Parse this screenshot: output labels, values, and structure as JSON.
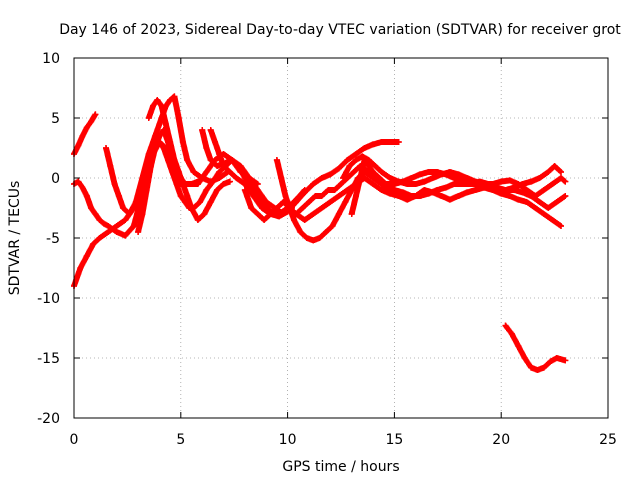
{
  "chart_data": {
    "type": "scatter",
    "title": "Day 146 of 2023, Sidereal Day-to-day VTEC variation (SDTVAR) for receiver grot",
    "xlabel": "GPS time / hours",
    "ylabel": "SDTVAR / TECUs",
    "xlim": [
      0,
      25
    ],
    "ylim": [
      -20,
      10
    ],
    "xticks": [
      0,
      5,
      10,
      15,
      20,
      25
    ],
    "yticks": [
      -20,
      -15,
      -10,
      -5,
      0,
      5,
      10
    ],
    "grid": true,
    "marker": "+",
    "color": "#ff0000",
    "series": [
      {
        "name": "trace-1",
        "x": [
          0.0,
          0.3,
          0.6,
          0.9,
          1.2,
          1.6,
          2.0,
          2.4,
          2.8,
          3.1,
          3.4,
          3.7,
          4.0,
          4.3,
          4.6,
          5.0,
          5.4,
          5.8,
          6.2,
          6.6,
          7.0,
          7.4,
          7.8,
          8.2,
          8.6
        ],
        "y": [
          -9.0,
          -7.5,
          -6.5,
          -5.5,
          -5.0,
          -4.5,
          -4.0,
          -3.5,
          -2.5,
          -1.0,
          1.0,
          2.5,
          3.0,
          2.5,
          1.0,
          -0.5,
          -0.5,
          -0.5,
          0.5,
          1.5,
          2.0,
          1.5,
          0.5,
          0.0,
          -0.5
        ]
      },
      {
        "name": "trace-2",
        "x": [
          0.0,
          0.2,
          0.4,
          0.6,
          0.8,
          1.0,
          1.2,
          1.4,
          1.6,
          2.0,
          2.4,
          2.8,
          3.1,
          3.4,
          3.7,
          4.0,
          4.2,
          4.4,
          4.6,
          4.8,
          5.0,
          5.2,
          5.4,
          5.6,
          5.9,
          6.2,
          6.5,
          6.8,
          7.1,
          7.4,
          7.7,
          8.0,
          8.4,
          8.8,
          9.2,
          9.6,
          10.0,
          10.4,
          10.8
        ],
        "y": [
          -0.5,
          -0.3,
          -0.8,
          -1.5,
          -2.5,
          -3.0,
          -3.5,
          -3.8,
          -4.0,
          -4.5,
          -4.8,
          -4.0,
          -2.0,
          0.5,
          2.0,
          3.0,
          2.5,
          1.5,
          0.5,
          -0.5,
          -1.5,
          -2.0,
          -2.5,
          -2.5,
          -2.0,
          -1.0,
          -0.3,
          0.5,
          1.0,
          1.5,
          1.0,
          0.0,
          -1.0,
          -2.0,
          -2.8,
          -3.0,
          -2.5,
          -1.8,
          -1.0
        ]
      },
      {
        "name": "trace-3",
        "x": [
          0.0,
          0.2,
          0.4,
          0.6,
          0.8,
          1.0
        ],
        "y": [
          2.0,
          2.7,
          3.5,
          4.2,
          4.7,
          5.3
        ]
      },
      {
        "name": "trace-4",
        "x": [
          1.5,
          1.7,
          1.9,
          2.1,
          2.3,
          2.6,
          2.9,
          3.2,
          3.5,
          3.8,
          4.1,
          4.3,
          4.5,
          4.7,
          4.9,
          5.1,
          5.3,
          5.6,
          6.0,
          6.4,
          6.8,
          7.2
        ],
        "y": [
          2.5,
          1.0,
          -0.5,
          -1.5,
          -2.5,
          -3.0,
          -2.0,
          0.0,
          2.0,
          3.5,
          5.0,
          6.0,
          6.5,
          6.8,
          5.0,
          3.0,
          1.5,
          0.5,
          0.0,
          -0.3,
          0.0,
          0.5
        ]
      },
      {
        "name": "trace-5",
        "x": [
          3.5,
          3.7,
          3.9,
          4.1,
          4.3,
          4.5,
          4.7,
          4.9,
          5.1,
          5.3,
          5.5,
          5.8,
          6.1,
          6.4,
          6.7,
          7.0,
          7.3
        ],
        "y": [
          5.0,
          6.0,
          6.5,
          6.0,
          4.5,
          3.0,
          1.5,
          0.5,
          -0.5,
          -1.5,
          -2.5,
          -3.5,
          -3.0,
          -2.0,
          -1.0,
          -0.5,
          -0.3
        ]
      },
      {
        "name": "trace-6",
        "x": [
          3.0,
          3.2,
          3.4,
          3.6,
          3.8,
          4.0,
          4.2,
          4.4,
          4.6,
          4.8,
          5.0,
          5.2,
          5.5,
          5.8
        ],
        "y": [
          -4.5,
          -3.0,
          -1.0,
          1.0,
          2.5,
          3.5,
          4.0,
          3.0,
          2.0,
          1.0,
          0.0,
          -0.5,
          -0.5,
          -0.3
        ]
      },
      {
        "name": "trace-7",
        "x": [
          6.0,
          6.2,
          6.4,
          6.7,
          7.0,
          7.4,
          7.8,
          8.2,
          8.6,
          9.0,
          9.4,
          9.8,
          10.2
        ],
        "y": [
          4.0,
          2.5,
          1.5,
          1.0,
          1.2,
          1.5,
          1.0,
          0.0,
          -1.0,
          -2.0,
          -2.5,
          -3.0,
          -2.5
        ]
      },
      {
        "name": "trace-8",
        "x": [
          6.4,
          6.6,
          6.8,
          7.0,
          7.3,
          7.6,
          8.0,
          8.4,
          8.8,
          9.2,
          9.6,
          10.0,
          10.4,
          10.8,
          11.2,
          11.6,
          12.0,
          12.4,
          12.8,
          13.2,
          13.6,
          14.0,
          14.4,
          14.8,
          15.2
        ],
        "y": [
          4.0,
          3.0,
          2.0,
          1.0,
          0.5,
          0.0,
          -0.5,
          -1.5,
          -2.5,
          -3.0,
          -3.2,
          -2.8,
          -2.0,
          -1.2,
          -0.5,
          0.0,
          0.3,
          0.8,
          1.5,
          2.0,
          2.5,
          2.8,
          3.0,
          3.0,
          3.0
        ]
      },
      {
        "name": "trace-9",
        "x": [
          9.5,
          9.7,
          9.9,
          10.1,
          10.3,
          10.6,
          10.9,
          11.2,
          11.5,
          11.8,
          12.1,
          12.4,
          12.7,
          13.0,
          13.3,
          13.6,
          14.0,
          14.4,
          14.8,
          15.2,
          15.6,
          16.0,
          16.4
        ],
        "y": [
          1.5,
          0.0,
          -1.5,
          -2.5,
          -3.5,
          -4.5,
          -5.0,
          -5.2,
          -5.0,
          -4.5,
          -4.0,
          -3.0,
          -2.0,
          -1.0,
          0.0,
          0.5,
          0.0,
          -0.5,
          -1.0,
          -1.3,
          -1.5,
          -1.5,
          -1.0
        ]
      },
      {
        "name": "trace-10",
        "x": [
          8.0,
          8.3,
          8.6,
          8.9,
          9.2,
          9.5,
          9.8,
          10.1,
          10.4,
          10.7,
          11.0,
          11.3,
          11.6,
          11.9,
          12.2,
          12.5,
          12.8,
          13.1,
          13.4,
          13.8,
          14.2,
          14.6,
          15.0,
          15.4,
          15.8,
          16.2,
          16.6,
          17.0,
          17.4,
          17.8,
          18.2,
          18.6,
          19.0,
          19.4,
          19.8,
          20.2,
          20.6,
          21.0,
          21.4,
          21.8,
          22.2,
          22.6,
          23.0
        ],
        "y": [
          -1.0,
          -2.5,
          -3.0,
          -3.5,
          -3.0,
          -2.5,
          -2.0,
          -2.5,
          -3.0,
          -2.5,
          -2.0,
          -1.5,
          -1.5,
          -1.0,
          -1.0,
          -0.5,
          0.0,
          0.5,
          1.0,
          0.5,
          0.0,
          -0.5,
          -1.0,
          -1.2,
          -1.5,
          -1.5,
          -1.3,
          -1.0,
          -0.8,
          -0.5,
          -0.5,
          -0.5,
          -0.3,
          -0.5,
          -0.8,
          -1.0,
          -1.0,
          -1.2,
          -1.5,
          -2.0,
          -2.5,
          -2.0,
          -1.5
        ]
      },
      {
        "name": "trace-11",
        "x": [
          10.0,
          10.4,
          10.8,
          11.2,
          11.6,
          12.0,
          12.4,
          12.8,
          13.2,
          13.6,
          14.0,
          14.4,
          14.8,
          15.2,
          15.6,
          16.0,
          16.4,
          16.8,
          17.2,
          17.6,
          18.0,
          18.4,
          18.8,
          19.2,
          19.6,
          20.0,
          20.4,
          20.8,
          21.2,
          21.6,
          22.0,
          22.4,
          22.8
        ],
        "y": [
          -2.5,
          -3.0,
          -3.5,
          -3.0,
          -2.5,
          -2.0,
          -1.5,
          -1.0,
          -0.5,
          0.0,
          -0.5,
          -1.0,
          -1.3,
          -1.5,
          -1.8,
          -1.5,
          -1.0,
          -1.2,
          -1.5,
          -1.8,
          -1.5,
          -1.2,
          -1.0,
          -0.8,
          -1.0,
          -1.3,
          -1.5,
          -1.8,
          -2.0,
          -2.5,
          -3.0,
          -3.5,
          -4.0
        ]
      },
      {
        "name": "trace-12",
        "x": [
          13.0,
          13.2,
          13.4,
          13.6,
          13.8,
          14.0,
          14.3,
          14.6,
          15.0,
          15.4,
          15.8,
          16.2,
          16.6,
          17.0,
          17.4,
          17.8,
          18.2,
          18.6,
          19.0,
          19.4,
          19.8,
          20.2,
          20.6,
          21.0,
          21.4,
          21.8,
          22.2,
          22.5,
          22.8
        ],
        "y": [
          -3.0,
          -1.5,
          0.0,
          1.5,
          1.0,
          0.5,
          0.0,
          -0.5,
          -0.5,
          -0.3,
          0.0,
          0.3,
          0.5,
          0.5,
          0.3,
          0.0,
          -0.3,
          -0.5,
          -0.5,
          -0.8,
          -1.0,
          -1.0,
          -0.8,
          -0.5,
          -0.3,
          0.0,
          0.5,
          1.0,
          0.5
        ]
      },
      {
        "name": "trace-13",
        "x": [
          12.6,
          12.9,
          13.2,
          13.5,
          13.8,
          14.1,
          14.4,
          14.8,
          15.2,
          15.6,
          16.0,
          16.4,
          16.8,
          17.2,
          17.6,
          18.0,
          18.4,
          18.8,
          19.2,
          19.6,
          20.0,
          20.4,
          20.8,
          21.2,
          21.6,
          22.0,
          22.4,
          22.8,
          23.0
        ],
        "y": [
          0.0,
          1.0,
          1.5,
          1.8,
          1.5,
          1.0,
          0.5,
          0.0,
          -0.3,
          -0.5,
          -0.5,
          -0.3,
          0.0,
          0.3,
          0.5,
          0.3,
          0.0,
          -0.3,
          -0.5,
          -0.5,
          -0.3,
          -0.2,
          -0.5,
          -1.0,
          -1.5,
          -1.0,
          -0.5,
          0.0,
          -0.3
        ]
      },
      {
        "name": "trace-14",
        "x": [
          20.2,
          20.5,
          20.8,
          21.1,
          21.4,
          21.7,
          22.0,
          22.3,
          22.6,
          23.0
        ],
        "y": [
          -12.3,
          -13.0,
          -14.0,
          -15.0,
          -15.8,
          -16.0,
          -15.8,
          -15.3,
          -15.0,
          -15.2
        ]
      }
    ]
  }
}
